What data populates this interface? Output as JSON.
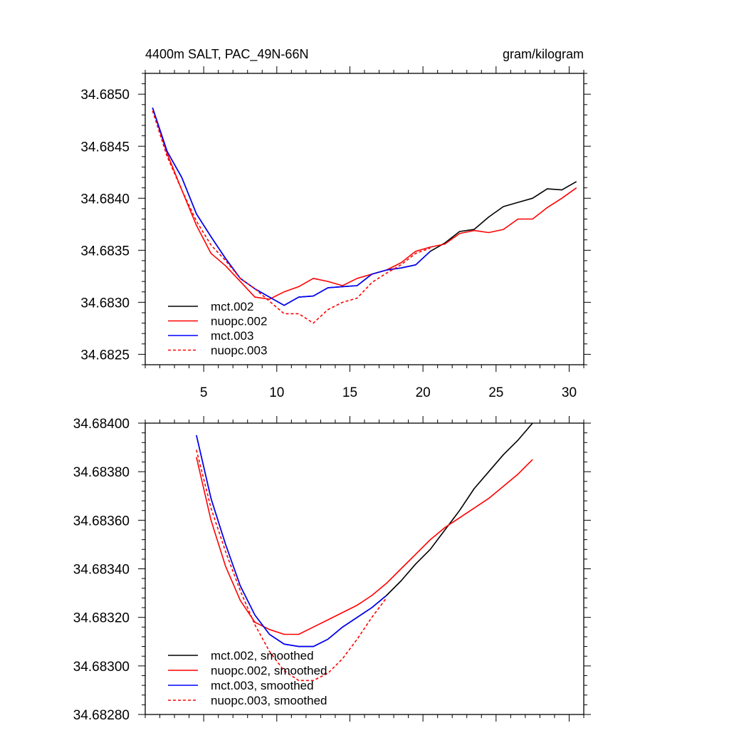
{
  "chart_data": [
    {
      "type": "line",
      "title": "4400m SALT, PAC_49N-66N",
      "units": "gram/kilogram",
      "xlabel": "",
      "ylabel": "",
      "xlim": [
        1,
        31
      ],
      "ylim": [
        34.6824,
        34.6852
      ],
      "xticks": [
        5,
        10,
        15,
        20,
        25,
        30
      ],
      "xtick_labels": [
        "5",
        "10",
        "15",
        "20",
        "25",
        "30"
      ],
      "yticks": [
        34.6825,
        34.683,
        34.6835,
        34.684,
        34.6845,
        34.685
      ],
      "ytick_labels": [
        "34.6825",
        "34.6830",
        "34.6835",
        "34.6840",
        "34.6845",
        "34.6850"
      ],
      "legend_position": "bottom-left",
      "series": [
        {
          "name": "mct.002",
          "color": "#000000",
          "dash": "solid",
          "x": [
            1.5,
            2.5,
            3.5,
            4.5,
            5.5,
            6.5,
            7.5,
            8.5,
            9.5,
            10.5,
            11.5,
            12.5,
            13.5,
            14.5,
            15.5,
            16.5,
            17.5,
            18.5,
            19.5,
            20.5,
            21.5,
            22.5,
            23.5,
            24.5,
            25.5,
            26.5,
            27.5,
            28.5,
            29.5,
            30.5
          ],
          "y": [
            34.68487,
            34.68445,
            34.6842,
            34.68385,
            34.68363,
            34.68342,
            34.68323,
            34.68313,
            34.68305,
            34.68297,
            34.68305,
            34.68306,
            34.68314,
            34.68315,
            34.68316,
            34.68327,
            34.68331,
            34.68333,
            34.68336,
            34.68349,
            34.68357,
            34.68368,
            34.6837,
            34.68382,
            34.68392,
            34.68396,
            34.684,
            34.68409,
            34.68408,
            34.68416
          ]
        },
        {
          "name": "nuopc.002",
          "color": "#ff0000",
          "dash": "solid",
          "x": [
            1.5,
            2.5,
            3.5,
            4.5,
            5.5,
            6.5,
            7.5,
            8.5,
            9.5,
            10.5,
            11.5,
            12.5,
            13.5,
            14.5,
            15.5,
            16.5,
            17.5,
            18.5,
            19.5,
            20.5,
            21.5,
            22.5,
            23.5,
            24.5,
            25.5,
            26.5,
            27.5,
            28.5,
            29.5,
            30.5
          ],
          "y": [
            34.68487,
            34.68443,
            34.68408,
            34.68374,
            34.68347,
            34.68335,
            34.6832,
            34.68305,
            34.68303,
            34.6831,
            34.68315,
            34.68323,
            34.6832,
            34.68316,
            34.68323,
            34.68327,
            34.68331,
            34.68338,
            34.68349,
            34.68353,
            34.68356,
            34.68366,
            34.68369,
            34.68367,
            34.6837,
            34.6838,
            34.6838,
            34.68391,
            34.684,
            34.6841
          ]
        },
        {
          "name": "mct.003",
          "color": "#0000ff",
          "dash": "solid",
          "x": [
            1.5,
            2.5,
            3.5,
            4.5,
            5.5,
            6.5,
            7.5,
            8.5,
            9.5,
            10.5,
            11.5,
            12.5,
            13.5,
            14.5,
            15.5,
            16.5,
            17.5,
            18.5,
            19.5,
            20.5
          ],
          "y": [
            34.68487,
            34.68445,
            34.6842,
            34.68385,
            34.68363,
            34.68342,
            34.68323,
            34.68313,
            34.68305,
            34.68297,
            34.68305,
            34.68306,
            34.68314,
            34.68315,
            34.68316,
            34.68327,
            34.68331,
            34.68333,
            34.68336,
            34.68349
          ]
        },
        {
          "name": "nuopc.003",
          "color": "#ff0000",
          "dash": "dashed",
          "x": [
            1.5,
            2.5,
            3.5,
            4.5,
            5.5,
            6.5,
            7.5,
            8.5,
            9.5,
            10.5,
            11.5,
            12.5,
            13.5,
            14.5,
            15.5,
            16.5,
            17.5,
            18.5,
            19.5,
            20.5
          ],
          "y": [
            34.68484,
            34.6844,
            34.68408,
            34.68378,
            34.68355,
            34.6834,
            34.68323,
            34.68313,
            34.68301,
            34.68289,
            34.68289,
            34.6828,
            34.68293,
            34.683,
            34.68304,
            34.68319,
            34.68328,
            34.68336,
            34.68347,
            34.68352
          ]
        }
      ]
    },
    {
      "type": "line",
      "title": "",
      "xlabel": "",
      "ylabel": "",
      "xlim": [
        1,
        31
      ],
      "ylim": [
        34.6828,
        34.684
      ],
      "xticks": [
        5,
        10,
        15,
        20,
        25,
        30
      ],
      "xtick_labels": [],
      "yticks": [
        34.6828,
        34.683,
        34.6832,
        34.6834,
        34.6836,
        34.6838,
        34.684
      ],
      "ytick_labels": [
        "34.68280",
        "34.68300",
        "34.68320",
        "34.68340",
        "34.68360",
        "34.68380",
        "34.68400"
      ],
      "legend_position": "bottom-left",
      "series": [
        {
          "name": "mct.002, smoothed",
          "color": "#000000",
          "dash": "solid",
          "x": [
            4.5,
            5.5,
            6.5,
            7.5,
            8.5,
            9.5,
            10.5,
            11.5,
            12.5,
            13.5,
            14.5,
            15.5,
            16.5,
            17.5,
            18.5,
            19.5,
            20.5,
            21.5,
            22.5,
            23.5,
            24.5,
            25.5,
            26.5,
            27.5
          ],
          "y": [
            34.68395,
            34.68369,
            34.6835,
            34.68333,
            34.68321,
            34.68313,
            34.68309,
            34.68308,
            34.68308,
            34.68311,
            34.68316,
            34.6832,
            34.68324,
            34.68329,
            34.68335,
            34.68342,
            34.68348,
            34.68356,
            34.68364,
            34.68373,
            34.6838,
            34.68387,
            34.68393,
            34.684
          ]
        },
        {
          "name": "nuopc.002, smoothed",
          "color": "#ff0000",
          "dash": "solid",
          "x": [
            4.5,
            5.5,
            6.5,
            7.5,
            8.5,
            9.5,
            10.5,
            11.5,
            12.5,
            13.5,
            14.5,
            15.5,
            16.5,
            17.5,
            18.5,
            19.5,
            20.5,
            21.5,
            22.5,
            23.5,
            24.5,
            25.5,
            26.5,
            27.5
          ],
          "y": [
            34.68386,
            34.6836,
            34.68341,
            34.68327,
            34.68318,
            34.68315,
            34.68313,
            34.68313,
            34.68316,
            34.68319,
            34.68322,
            34.68325,
            34.68329,
            34.68334,
            34.6834,
            34.68346,
            34.68352,
            34.68357,
            34.68361,
            34.68365,
            34.68369,
            34.68374,
            34.68379,
            34.68385
          ]
        },
        {
          "name": "mct.003, smoothed",
          "color": "#0000ff",
          "dash": "solid",
          "x": [
            4.5,
            5.5,
            6.5,
            7.5,
            8.5,
            9.5,
            10.5,
            11.5,
            12.5,
            13.5,
            14.5,
            15.5,
            16.5,
            17.5
          ],
          "y": [
            34.68395,
            34.68369,
            34.6835,
            34.68333,
            34.68321,
            34.68313,
            34.68309,
            34.68308,
            34.68308,
            34.68311,
            34.68316,
            34.6832,
            34.68324,
            34.68329
          ]
        },
        {
          "name": "nuopc.003, smoothed",
          "color": "#ff0000",
          "dash": "dashed",
          "x": [
            4.5,
            5.5,
            6.5,
            7.5,
            8.5,
            9.5,
            10.5,
            11.5,
            12.5,
            13.5,
            14.5,
            15.5,
            16.5,
            17.5
          ],
          "y": [
            34.68389,
            34.68365,
            34.68347,
            34.68331,
            34.68317,
            34.68306,
            34.68298,
            34.68294,
            34.68294,
            34.68297,
            34.68303,
            34.68311,
            34.6832,
            34.68328
          ]
        }
      ]
    }
  ]
}
